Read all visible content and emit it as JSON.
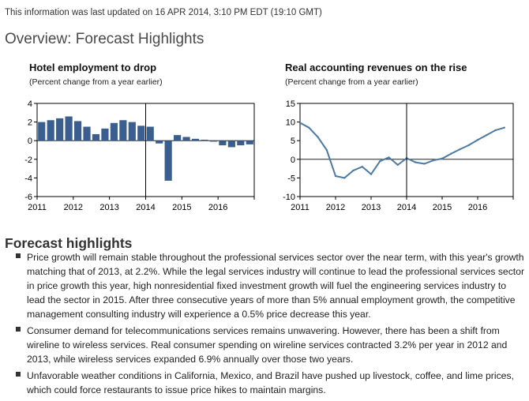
{
  "header": {
    "updated": "This information was last updated on 16 APR 2014, 3:10 PM EDT (19:10 GMT)",
    "overview": "Overview: Forecast Highlights"
  },
  "chart_data": [
    {
      "type": "bar",
      "title": "Hotel employment to drop",
      "subtitle": "(Percent change from a year earlier)",
      "ylim": [
        -6,
        4
      ],
      "yticks": [
        4,
        2,
        0,
        -2,
        -4,
        -6
      ],
      "xlim": [
        2011,
        2017
      ],
      "xtick_labels": [
        "2011",
        "2012",
        "2013",
        "2014",
        "2015",
        "2016"
      ],
      "vline": 2014,
      "bar_color": "#3a5f8f",
      "categories": [
        "2011Q1",
        "2011Q2",
        "2011Q3",
        "2011Q4",
        "2012Q1",
        "2012Q2",
        "2012Q3",
        "2012Q4",
        "2013Q1",
        "2013Q2",
        "2013Q3",
        "2013Q4",
        "2014Q1",
        "2014Q2",
        "2014Q3",
        "2014Q4",
        "2015Q1",
        "2015Q2",
        "2015Q3",
        "2015Q4",
        "2016Q1",
        "2016Q2",
        "2016Q3",
        "2016Q4"
      ],
      "values": [
        2.0,
        2.2,
        2.4,
        2.6,
        2.1,
        1.5,
        0.7,
        1.3,
        1.9,
        2.2,
        2.0,
        1.6,
        1.5,
        -0.3,
        -4.3,
        0.6,
        0.4,
        0.2,
        0.1,
        -0.1,
        -0.5,
        -0.7,
        -0.5,
        -0.4
      ]
    },
    {
      "type": "line",
      "title": "Real accounting revenues on the rise",
      "subtitle": "(Percent change from a year earlier)",
      "ylim": [
        -10,
        15
      ],
      "yticks": [
        15,
        10,
        5,
        0,
        -5,
        -10
      ],
      "xlim": [
        2011,
        2017
      ],
      "xtick_labels": [
        "2011",
        "2012",
        "2013",
        "2014",
        "2015",
        "2016"
      ],
      "vline": 2014,
      "line_color": "#4d7aa3",
      "series": [
        {
          "x": [
            2011.0,
            2011.25,
            2011.5,
            2011.75,
            2012.0,
            2012.25,
            2012.5,
            2012.75,
            2013.0,
            2013.25,
            2013.5,
            2013.75,
            2014.0,
            2014.25,
            2014.5,
            2014.75,
            2015.0,
            2015.25,
            2015.5,
            2015.75,
            2016.0,
            2016.25,
            2016.5,
            2016.75
          ],
          "y": [
            9.8,
            8.5,
            6.0,
            2.5,
            -4.5,
            -5.0,
            -3.0,
            -2.0,
            -4.0,
            -0.5,
            0.5,
            -1.5,
            0.3,
            -0.8,
            -1.2,
            -0.3,
            0.2,
            1.5,
            2.7,
            3.8,
            5.2,
            6.5,
            7.8,
            8.5
          ]
        }
      ]
    }
  ],
  "highlights": {
    "heading": "Forecast highlights",
    "items": [
      "Price growth will remain stable throughout the professional services sector over the near term, with this year's growth matching that of 2013, at 2.2%. While the legal services industry will continue to lead the professional services sector in price growth this year, high nonresidential fixed investment growth will fuel the engineering services industry to lead the sector in 2015. After three consecutive years of more than 5% annual employment growth, the competitive management consulting industry will experience a 0.5% price decrease this year.",
      "Consumer demand for telecommunications services remains unwavering. However, there has been a shift from wireline to wireless services. Real consumer spending on wireline services contracted 3.2% per year in 2012 and 2013, while wireless services expanded 6.9% annually over those two years.",
      "Unfavorable weather conditions in California, Mexico, and Brazil have pushed up livestock, coffee, and lime prices, which could force restaurants to issue price hikes to maintain margins."
    ]
  }
}
